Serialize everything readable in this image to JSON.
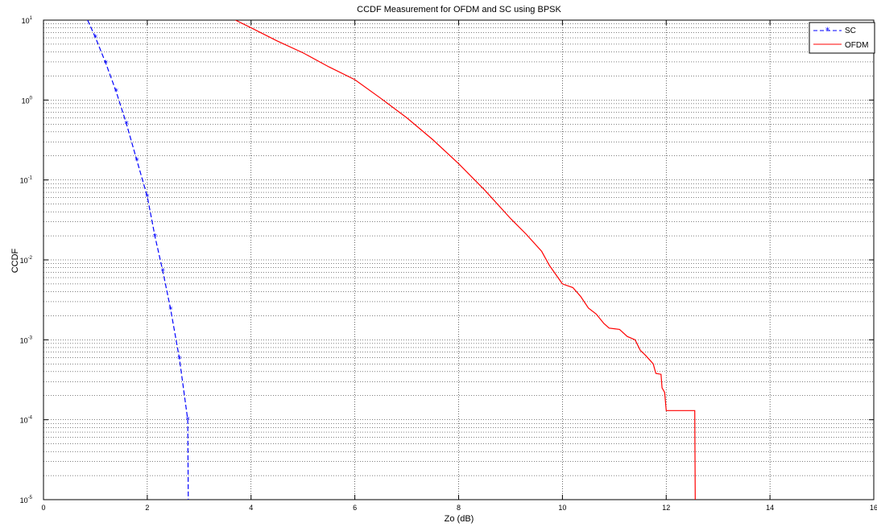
{
  "chart_data": {
    "type": "line",
    "title": "CCDF Measurement for OFDM and SC using BPSK",
    "xlabel": "Zo (dB)",
    "ylabel": "CCDF",
    "xlim": [
      0,
      16
    ],
    "ylim": [
      1e-05,
      10
    ],
    "yscale": "log",
    "grid": true,
    "legend_position": "top-right",
    "x_ticks": [
      "0",
      "2",
      "4",
      "6",
      "8",
      "10",
      "12",
      "14",
      "16"
    ],
    "y_ticks": [
      {
        "base": "10",
        "exp": "1",
        "value": 10
      },
      {
        "base": "10",
        "exp": "0",
        "value": 1
      },
      {
        "base": "10",
        "exp": "-1",
        "value": 0.1
      },
      {
        "base": "10",
        "exp": "-2",
        "value": 0.01
      },
      {
        "base": "10",
        "exp": "-3",
        "value": 0.001
      },
      {
        "base": "10",
        "exp": "-4",
        "value": 0.0001
      },
      {
        "base": "10",
        "exp": "-5",
        "value": 1e-05
      }
    ],
    "series": [
      {
        "name": "SC",
        "color": "#0000ff",
        "style": "dashed",
        "marker": "asterisk",
        "line_points": [
          [
            0.85,
            10
          ],
          [
            1.0,
            6.1
          ],
          [
            1.2,
            2.9
          ],
          [
            1.4,
            1.28
          ],
          [
            1.6,
            0.5
          ],
          [
            1.8,
            0.175
          ],
          [
            2.0,
            0.062
          ],
          [
            2.15,
            0.0195
          ],
          [
            2.3,
            0.0072
          ],
          [
            2.45,
            0.0024
          ],
          [
            2.62,
            0.00058
          ],
          [
            2.78,
            0.0001
          ],
          [
            2.79,
            1e-05
          ]
        ],
        "markers": [
          [
            1.0,
            6.1
          ],
          [
            1.2,
            2.9
          ],
          [
            1.4,
            1.28
          ],
          [
            1.6,
            0.5
          ],
          [
            1.8,
            0.175
          ],
          [
            2.0,
            0.062
          ],
          [
            2.15,
            0.0195
          ],
          [
            2.3,
            0.0072
          ],
          [
            2.45,
            0.0024
          ],
          [
            2.62,
            0.00058
          ],
          [
            2.78,
            0.0001
          ]
        ]
      },
      {
        "name": "OFDM",
        "color": "#ff0000",
        "style": "solid",
        "marker": "none",
        "points": [
          [
            3.7,
            10
          ],
          [
            4.0,
            8.0
          ],
          [
            4.5,
            5.5
          ],
          [
            5.0,
            3.9
          ],
          [
            5.5,
            2.6
          ],
          [
            6.0,
            1.8
          ],
          [
            6.5,
            1.05
          ],
          [
            7.0,
            0.6
          ],
          [
            7.5,
            0.32
          ],
          [
            8.0,
            0.16
          ],
          [
            8.5,
            0.075
          ],
          [
            9.0,
            0.033
          ],
          [
            9.3,
            0.021
          ],
          [
            9.6,
            0.0128
          ],
          [
            9.75,
            0.0085
          ],
          [
            9.9,
            0.0062
          ],
          [
            10.0,
            0.005
          ],
          [
            10.2,
            0.0045
          ],
          [
            10.35,
            0.0035
          ],
          [
            10.5,
            0.0025
          ],
          [
            10.65,
            0.0021
          ],
          [
            10.8,
            0.0016
          ],
          [
            10.9,
            0.0014
          ],
          [
            11.1,
            0.00135
          ],
          [
            11.25,
            0.0011
          ],
          [
            11.4,
            0.001
          ],
          [
            11.5,
            0.00074
          ],
          [
            11.6,
            0.00064
          ],
          [
            11.75,
            0.0005
          ],
          [
            11.8,
            0.00038
          ],
          [
            11.9,
            0.00037
          ],
          [
            11.92,
            0.00025
          ],
          [
            11.97,
            0.00022
          ],
          [
            12.0,
            0.00013
          ],
          [
            12.55,
            0.00013
          ],
          [
            12.56,
            1e-05
          ]
        ]
      }
    ]
  }
}
